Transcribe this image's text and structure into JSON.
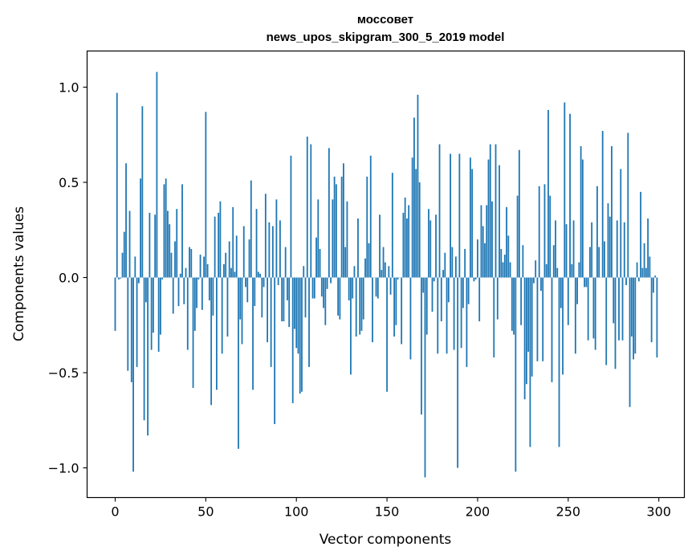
{
  "chart_data": {
    "type": "bar",
    "title": "моссовет",
    "subtitle": "news_upos_skipgram_300_5_2019 model",
    "xlabel": "Vector components",
    "ylabel": "Components values",
    "xlim": [
      -15.5,
      314.1
    ],
    "ylim": [
      -1.156,
      1.19
    ],
    "xticks": [
      0,
      50,
      100,
      150,
      200,
      250,
      300
    ],
    "xtick_labels": [
      "0",
      "50",
      "100",
      "150",
      "200",
      "250",
      "300"
    ],
    "yticks": [
      -1.0,
      -0.5,
      0.0,
      0.5,
      1.0
    ],
    "ytick_labels": [
      "−1.0",
      "−0.5",
      "0.0",
      "0.5",
      "1.0"
    ],
    "grid": false,
    "color": "#1f77b4",
    "values": [
      -0.28,
      0.97,
      -0.01,
      -0.005,
      0.13,
      0.24,
      0.6,
      -0.49,
      0.35,
      -0.55,
      -1.02,
      0.11,
      -0.47,
      -0.03,
      0.52,
      0.9,
      -0.75,
      -0.13,
      -0.83,
      0.34,
      -0.38,
      -0.29,
      0.33,
      1.08,
      -0.39,
      -0.3,
      -0.01,
      0.49,
      0.52,
      0.35,
      0.28,
      0.13,
      -0.19,
      0.19,
      0.36,
      -0.15,
      0.02,
      0.49,
      -0.14,
      0.05,
      -0.38,
      0.16,
      0.15,
      -0.58,
      -0.28,
      -0.16,
      -0.01,
      0.12,
      -0.17,
      0.11,
      0.87,
      0.07,
      -0.12,
      -0.67,
      -0.2,
      0.32,
      -0.59,
      0.34,
      0.4,
      -0.4,
      0.07,
      0.13,
      -0.31,
      0.19,
      0.05,
      0.37,
      0.03,
      0.22,
      -0.9,
      -0.22,
      -0.35,
      0.27,
      -0.05,
      -0.13,
      0.2,
      0.51,
      -0.59,
      -0.15,
      0.36,
      0.03,
      0.02,
      -0.21,
      -0.05,
      0.44,
      -0.34,
      0.29,
      -0.47,
      0.27,
      -0.77,
      0.41,
      -0.04,
      0.3,
      -0.23,
      -0.23,
      0.16,
      -0.12,
      -0.26,
      0.64,
      -0.66,
      -0.27,
      -0.37,
      -0.4,
      -0.61,
      -0.6,
      0.06,
      -0.21,
      0.74,
      -0.47,
      0.7,
      -0.11,
      -0.11,
      0.21,
      0.41,
      0.15,
      -0.1,
      -0.16,
      -0.25,
      -0.06,
      0.68,
      -0.03,
      0.41,
      0.53,
      0.49,
      -0.2,
      -0.22,
      0.53,
      0.6,
      0.16,
      0.4,
      -0.12,
      -0.51,
      -0.11,
      0.06,
      -0.31,
      0.31,
      -0.3,
      -0.28,
      -0.22,
      0.1,
      0.53,
      0.18,
      0.64,
      -0.34,
      0.0,
      -0.1,
      -0.11,
      0.33,
      0.04,
      0.16,
      0.08,
      -0.6,
      0.06,
      -0.09,
      0.55,
      -0.31,
      -0.25,
      -0.01,
      0.0,
      -0.35,
      0.34,
      0.42,
      0.31,
      0.38,
      -0.43,
      0.63,
      0.84,
      0.57,
      0.96,
      0.5,
      -0.72,
      -0.08,
      -1.05,
      -0.3,
      0.36,
      0.3,
      -0.18,
      -0.02,
      0.33,
      -0.4,
      0.7,
      -0.23,
      0.04,
      0.13,
      -0.4,
      -0.13,
      0.65,
      0.16,
      -0.38,
      0.11,
      -1.0,
      0.65,
      -0.37,
      -0.16,
      0.15,
      -0.47,
      -0.14,
      0.63,
      0.57,
      -0.02,
      -0.01,
      0.2,
      -0.23,
      0.38,
      0.27,
      0.18,
      0.38,
      0.62,
      0.7,
      0.4,
      -0.42,
      0.7,
      -0.22,
      0.59,
      0.15,
      0.08,
      0.12,
      0.37,
      0.22,
      0.08,
      -0.28,
      -0.3,
      -1.02,
      0.43,
      0.67,
      -0.25,
      0.17,
      -0.64,
      -0.56,
      -0.39,
      -0.89,
      -0.52,
      -0.03,
      0.09,
      -0.44,
      0.48,
      -0.07,
      -0.44,
      0.49,
      0.07,
      0.88,
      0.43,
      -0.55,
      0.17,
      0.3,
      0.05,
      -0.89,
      -0.16,
      -0.51,
      0.92,
      0.28,
      -0.25,
      0.86,
      0.07,
      0.3,
      -0.4,
      -0.14,
      0.08,
      0.69,
      0.62,
      -0.05,
      -0.05,
      -0.33,
      0.16,
      0.29,
      -0.32,
      -0.38,
      0.48,
      0.16,
      0.0,
      0.77,
      0.19,
      -0.46,
      0.39,
      0.32,
      0.69,
      -0.24,
      -0.48,
      0.3,
      -0.33,
      0.57,
      -0.33,
      0.29,
      -0.04,
      0.76,
      -0.68,
      -0.31,
      -0.43,
      -0.4,
      0.08,
      -0.02,
      0.45,
      0.05,
      0.18,
      0.05,
      0.31,
      0.11,
      -0.34,
      -0.08,
      0.01,
      -0.42
    ]
  }
}
